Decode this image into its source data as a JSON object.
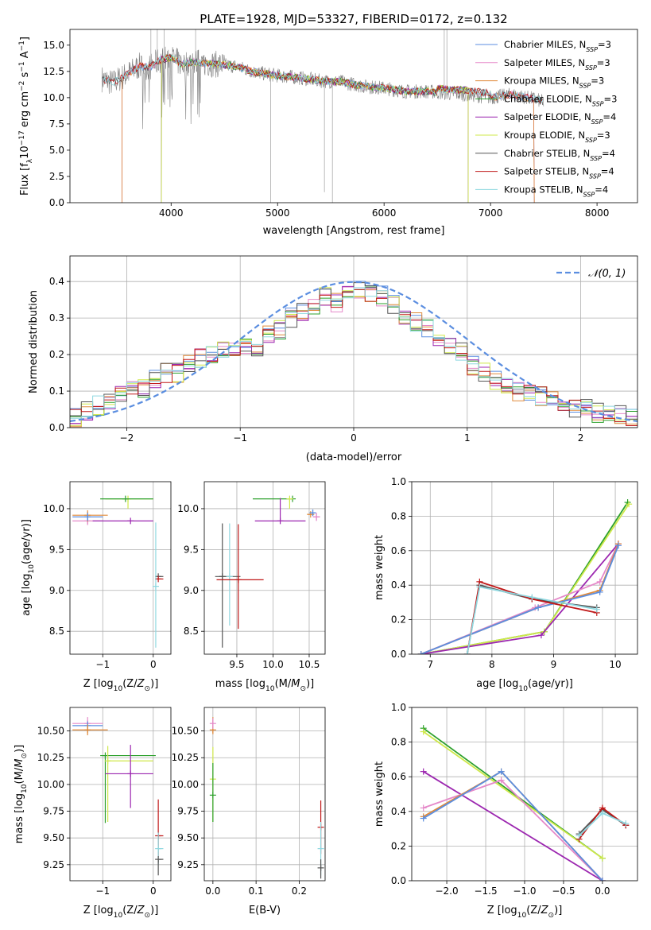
{
  "figure": {
    "title": "PLATE=1928, MJD=53327, FIBERID=0172, z=0.132",
    "colors": {
      "Chabrier MILES": "#5b8ee0",
      "Salpeter MILES": "#e589c9",
      "Kroupa MILES": "#e08a3a",
      "Chabrier ELODIE": "#2ca02c",
      "Salpeter ELODIE": "#9c27b0",
      "Kroupa ELODIE": "#cfe84a",
      "Chabrier STELIB": "#555555",
      "Salpeter STELIB": "#c01818",
      "Kroupa STELIB": "#8fd8e0",
      "data": "#808080",
      "normal": "#5b8ee0"
    }
  },
  "chart_data": [
    {
      "type": "line",
      "title": "PLATE=1928, MJD=53327, FIBERID=0172, z=0.132",
      "xlabel": "wavelength [Angstrom, rest frame]",
      "ylabel": "Flux [f_λ10^-17 erg cm^-2 s^-1 A^-1]",
      "xlim": [
        3050,
        8380
      ],
      "ylim": [
        0,
        16.5
      ],
      "xticks": [
        4000,
        5000,
        6000,
        7000,
        8000
      ],
      "yticks": [
        0.0,
        2.5,
        5.0,
        7.5,
        10.0,
        12.5,
        15.0
      ],
      "legend_position": "right",
      "series": [
        {
          "name": "Chabrier MILES, N_SSP=3"
        },
        {
          "name": "Salpeter MILES, N_SSP=3"
        },
        {
          "name": "Kroupa MILES, N_SSP=3"
        },
        {
          "name": "Chabrier ELODIE, N_SSP=3"
        },
        {
          "name": "Salpeter ELODIE, N_SSP=4"
        },
        {
          "name": "Kroupa ELODIE, N_SSP=3"
        },
        {
          "name": "Chabrier STELIB, N_SSP=4"
        },
        {
          "name": "Salpeter STELIB, N_SSP=4"
        },
        {
          "name": "Kroupa STELIB, N_SSP=4"
        }
      ],
      "data_continuum": {
        "x": [
          3350,
          3450,
          3600,
          3700,
          3800,
          3900,
          4000,
          4100,
          4200,
          4400,
          4600,
          4800,
          5000,
          5200,
          5400,
          5600,
          5800,
          6000,
          6200,
          6400,
          6600,
          6800,
          7000,
          7200,
          7400,
          7500
        ],
        "y": [
          11.8,
          11.4,
          12.3,
          13.0,
          12.9,
          13.6,
          13.8,
          13.2,
          13.4,
          13.2,
          13.0,
          12.4,
          12.1,
          11.9,
          11.6,
          11.5,
          11.1,
          10.9,
          10.6,
          10.6,
          10.4,
          10.3,
          10.0,
          10.3,
          9.9,
          9.6
        ]
      }
    },
    {
      "type": "line",
      "xlabel": "(data-model)/error",
      "ylabel": "Normed distribution",
      "xlim": [
        -2.5,
        2.5
      ],
      "ylim": [
        0,
        0.47
      ],
      "xticks": [
        -2,
        -1,
        0,
        1,
        2
      ],
      "yticks": [
        0.0,
        0.1,
        0.2,
        0.3,
        0.4
      ],
      "bin_edges_start": -2.5,
      "bin_width": 0.1,
      "histogram_mean": [
        0.03,
        0.045,
        0.06,
        0.07,
        0.09,
        0.1,
        0.11,
        0.13,
        0.15,
        0.15,
        0.17,
        0.19,
        0.2,
        0.21,
        0.22,
        0.23,
        0.22,
        0.26,
        0.27,
        0.3,
        0.32,
        0.33,
        0.36,
        0.34,
        0.37,
        0.38,
        0.37,
        0.36,
        0.34,
        0.3,
        0.29,
        0.27,
        0.24,
        0.22,
        0.21,
        0.17,
        0.15,
        0.13,
        0.11,
        0.1,
        0.09,
        0.085,
        0.075,
        0.06,
        0.055,
        0.05,
        0.04,
        0.04,
        0.035,
        0.03
      ],
      "normal_label": "𝒩(0, 1)",
      "legend_position": "top-right"
    },
    {
      "type": "scatter",
      "xlabel": "Z [log10(Z/Z⊙)]",
      "ylabel": "age  [log10(age/yr)]",
      "xlim": [
        -1.65,
        0.35
      ],
      "ylim": [
        8.22,
        10.33
      ],
      "xticks": [
        -1,
        0
      ],
      "yticks": [
        8.5,
        9.0,
        9.5,
        10.0
      ],
      "points": [
        {
          "model": "Salpeter MILES",
          "x": -1.3,
          "y": 9.85,
          "xerr": [
            0.3,
            0.3
          ],
          "yerr": [
            0.05,
            0.05
          ]
        },
        {
          "model": "Kroupa MILES",
          "x": -1.3,
          "y": 9.92,
          "xerr": [
            0.3,
            0.4
          ],
          "yerr": [
            0.08,
            0.06
          ]
        },
        {
          "model": "Chabrier MILES",
          "x": -1.3,
          "y": 9.9,
          "xerr": [
            0.3,
            0.3
          ],
          "yerr": [
            0.05,
            0.05
          ]
        },
        {
          "model": "Salpeter ELODIE",
          "x": -0.45,
          "y": 9.85,
          "xerr": [
            0.75,
            0.45
          ],
          "yerr": [
            0.0,
            0.0
          ]
        },
        {
          "model": "Kroupa ELODIE",
          "x": -0.5,
          "y": 10.12,
          "xerr": [
            0.45,
            0.5
          ],
          "yerr": [
            0.12,
            0.0
          ]
        },
        {
          "model": "Chabrier ELODIE",
          "x": -0.55,
          "y": 10.12,
          "xerr": [
            0.5,
            0.55
          ],
          "yerr": [
            0.0,
            0.0
          ]
        },
        {
          "model": "Chabrier STELIB",
          "x": 0.1,
          "y": 9.17,
          "xerr": [
            0.05,
            0.1
          ],
          "yerr": [
            0.0,
            0.0
          ]
        },
        {
          "model": "Salpeter STELIB",
          "x": 0.1,
          "y": 9.14,
          "xerr": [
            0.05,
            0.1
          ],
          "yerr": [
            0.0,
            0.0
          ]
        },
        {
          "model": "Kroupa STELIB",
          "x": 0.05,
          "y": 9.05,
          "xerr": [
            0.0,
            0.0
          ],
          "yerr": [
            0.75,
            0.78
          ]
        }
      ]
    },
    {
      "type": "scatter",
      "xlabel": "mass [log10(M/M⊙)]",
      "xlim": [
        9.05,
        10.72
      ],
      "ylim": [
        8.22,
        10.33
      ],
      "xticks": [
        9.5,
        10.0,
        10.5
      ],
      "yticks": [
        8.5,
        9.0,
        9.5,
        10.0
      ],
      "points": [
        {
          "model": "Chabrier STELIB",
          "x": 9.3,
          "y": 9.17,
          "xerr": [
            0.1,
            0.25
          ],
          "yerr": [
            0.87,
            0.65
          ]
        },
        {
          "model": "Kroupa STELIB",
          "x": 9.4,
          "y": 9.17,
          "xerr": [
            0.0,
            0.0
          ],
          "yerr": [
            0.6,
            0.65
          ]
        },
        {
          "model": "Salpeter STELIB",
          "x": 9.52,
          "y": 9.13,
          "xerr": [
            0.3,
            0.35
          ],
          "yerr": [
            0.6,
            0.68
          ]
        },
        {
          "model": "Chabrier ELODIE",
          "x": 10.27,
          "y": 10.12,
          "xerr": [
            0.55,
            0.0
          ],
          "yerr": [
            0.0,
            0.0
          ]
        },
        {
          "model": "Kroupa ELODIE",
          "x": 10.23,
          "y": 10.12,
          "xerr": [
            0.0,
            0.05
          ],
          "yerr": [
            0.12,
            0.0
          ]
        },
        {
          "model": "Salpeter ELODIE",
          "x": 10.1,
          "y": 9.85,
          "xerr": [
            0.35,
            0.35
          ],
          "yerr": [
            0.0,
            0.28
          ]
        },
        {
          "model": "Kroupa MILES",
          "x": 10.52,
          "y": 9.93,
          "xerr": [
            0.05,
            0.05
          ],
          "yerr": [
            0.0,
            0.0
          ]
        },
        {
          "model": "Salpeter MILES",
          "x": 10.6,
          "y": 9.9,
          "xerr": [
            0.05,
            0.05
          ],
          "yerr": [
            0.05,
            0.05
          ]
        },
        {
          "model": "Chabrier MILES",
          "x": 10.55,
          "y": 9.95,
          "xerr": [
            0.04,
            0.04
          ],
          "yerr": [
            0.04,
            0.04
          ]
        }
      ]
    },
    {
      "type": "line",
      "xlabel": "age  [log10(age/yr)]",
      "ylabel": "mass weight",
      "xlim": [
        6.7,
        10.36
      ],
      "ylim": [
        0,
        1.0
      ],
      "xticks": [
        7,
        8,
        9,
        10
      ],
      "yticks": [
        0.0,
        0.2,
        0.4,
        0.6,
        0.8,
        1.0
      ],
      "series": [
        {
          "model": "Chabrier ELODIE",
          "x": [
            6.85,
            8.85,
            10.2
          ],
          "y": [
            0.0,
            0.13,
            0.88
          ]
        },
        {
          "model": "Kroupa ELODIE",
          "x": [
            6.85,
            8.85,
            10.22
          ],
          "y": [
            0.0,
            0.13,
            0.87
          ]
        },
        {
          "model": "Salpeter ELODIE",
          "x": [
            6.85,
            8.8,
            10.05
          ],
          "y": [
            0.0,
            0.11,
            0.64
          ]
        },
        {
          "model": "Salpeter MILES",
          "x": [
            6.85,
            8.7,
            9.75,
            10.05
          ],
          "y": [
            0.0,
            0.27,
            0.42,
            0.64
          ]
        },
        {
          "model": "Kroupa MILES",
          "x": [
            6.85,
            8.75,
            9.75,
            10.05
          ],
          "y": [
            0.0,
            0.27,
            0.37,
            0.64
          ]
        },
        {
          "model": "Chabrier MILES",
          "x": [
            6.85,
            8.75,
            9.75,
            10.05
          ],
          "y": [
            0.0,
            0.27,
            0.36,
            0.63
          ]
        },
        {
          "model": "Chabrier STELIB",
          "x": [
            7.6,
            7.8,
            8.65,
            9.7
          ],
          "y": [
            0.0,
            0.4,
            0.32,
            0.27
          ]
        },
        {
          "model": "Salpeter STELIB",
          "x": [
            7.6,
            7.8,
            8.65,
            9.7
          ],
          "y": [
            0.0,
            0.42,
            0.32,
            0.24
          ]
        },
        {
          "model": "Kroupa STELIB",
          "x": [
            7.6,
            7.8,
            8.65,
            9.7
          ],
          "y": [
            0.0,
            0.39,
            0.33,
            0.26
          ]
        }
      ]
    },
    {
      "type": "scatter",
      "xlabel": "Z [log10(Z/Z⊙)]",
      "ylabel": "mass [log10(M/M⊙)]",
      "xlim": [
        -1.65,
        0.35
      ],
      "ylim": [
        9.1,
        10.72
      ],
      "xticks": [
        -1,
        0
      ],
      "yticks": [
        9.25,
        9.5,
        9.75,
        10.0,
        10.25,
        10.5
      ],
      "points": [
        {
          "model": "Salpeter MILES",
          "x": -1.3,
          "y": 10.57,
          "xerr": [
            0.3,
            0.3
          ],
          "yerr": [
            0.06,
            0.06
          ]
        },
        {
          "model": "Chabrier MILES",
          "x": -1.3,
          "y": 10.55,
          "xerr": [
            0.3,
            0.3
          ],
          "yerr": [
            0.04,
            0.04
          ]
        },
        {
          "model": "Kroupa MILES",
          "x": -1.3,
          "y": 10.51,
          "xerr": [
            0.3,
            0.4
          ],
          "yerr": [
            0.05,
            0.05
          ]
        },
        {
          "model": "Chabrier ELODIE",
          "x": -0.95,
          "y": 10.27,
          "xerr": [
            0.1,
            1.0
          ],
          "yerr": [
            0.63,
            0.0
          ]
        },
        {
          "model": "Kroupa ELODIE",
          "x": -0.9,
          "y": 10.22,
          "xerr": [
            0.0,
            0.9
          ],
          "yerr": [
            0.57,
            0.14
          ]
        },
        {
          "model": "Salpeter ELODIE",
          "x": -0.45,
          "y": 10.1,
          "xerr": [
            0.5,
            0.45
          ],
          "yerr": [
            0.32,
            0.27
          ]
        },
        {
          "model": "Salpeter STELIB",
          "x": 0.1,
          "y": 9.52,
          "xerr": [
            0.0,
            0.1
          ],
          "yerr": [
            0.2,
            0.34
          ]
        },
        {
          "model": "Kroupa STELIB",
          "x": 0.1,
          "y": 9.4,
          "xerr": [
            0.0,
            0.1
          ],
          "yerr": [
            0.15,
            0.15
          ]
        },
        {
          "model": "Chabrier STELIB",
          "x": 0.1,
          "y": 9.3,
          "xerr": [
            0.0,
            0.1
          ],
          "yerr": [
            0.15,
            0.0
          ]
        }
      ]
    },
    {
      "type": "scatter",
      "xlabel": "E(B-V)",
      "xlim": [
        -0.02,
        0.26
      ],
      "ylim": [
        9.1,
        10.72
      ],
      "xticks": [
        0.0,
        0.1,
        0.2
      ],
      "yticks": [
        9.25,
        9.5,
        9.75,
        10.0,
        10.25,
        10.5
      ],
      "points": [
        {
          "model": "Kroupa MILES",
          "x": 0.0,
          "y": 10.51,
          "yerr": [
            0.04,
            0.12
          ]
        },
        {
          "model": "Salpeter MILES",
          "x": 0.0,
          "y": 10.57,
          "yerr": [
            0.05,
            0.05
          ]
        },
        {
          "model": "Kroupa ELODIE",
          "x": 0.0,
          "y": 10.05,
          "yerr": [
            0.4,
            0.3
          ]
        },
        {
          "model": "Chabrier ELODIE",
          "x": 0.0,
          "y": 9.9,
          "yerr": [
            0.25,
            0.3
          ]
        },
        {
          "model": "Salpeter STELIB",
          "x": 0.25,
          "y": 9.6,
          "yerr": [
            0.25,
            0.25
          ]
        },
        {
          "model": "Kroupa STELIB",
          "x": 0.25,
          "y": 9.4,
          "yerr": [
            0.25,
            0.25
          ]
        },
        {
          "model": "Chabrier STELIB",
          "x": 0.25,
          "y": 9.22,
          "yerr": [
            0.1,
            0.08
          ]
        }
      ]
    },
    {
      "type": "line",
      "xlabel": "Z [log10(Z/Z⊙)]",
      "ylabel": "mass weight",
      "xlim": [
        -2.45,
        0.45
      ],
      "ylim": [
        0,
        1.0
      ],
      "xticks": [
        -2.0,
        -1.5,
        -1.0,
        -0.5,
        0.0
      ],
      "yticks": [
        0.0,
        0.2,
        0.4,
        0.6,
        0.8,
        1.0
      ],
      "series": [
        {
          "model": "Chabrier ELODIE",
          "x": [
            -2.3,
            0.0
          ],
          "y": [
            0.88,
            0.13
          ]
        },
        {
          "model": "Kroupa ELODIE",
          "x": [
            -2.3,
            0.0
          ],
          "y": [
            0.86,
            0.13
          ]
        },
        {
          "model": "Salpeter ELODIE",
          "x": [
            -2.3,
            0.0
          ],
          "y": [
            0.63,
            0.0
          ]
        },
        {
          "model": "Salpeter MILES",
          "x": [
            -2.3,
            -1.3,
            0.0
          ],
          "y": [
            0.42,
            0.58,
            0.0
          ]
        },
        {
          "model": "Kroupa MILES",
          "x": [
            -2.3,
            -1.3,
            0.0
          ],
          "y": [
            0.37,
            0.63,
            0.0
          ]
        },
        {
          "model": "Chabrier MILES",
          "x": [
            -2.3,
            -1.3,
            0.0
          ],
          "y": [
            0.36,
            0.63,
            0.0
          ]
        },
        {
          "model": "Chabrier STELIB",
          "x": [
            -0.3,
            0.0,
            0.3
          ],
          "y": [
            0.27,
            0.41,
            0.32
          ]
        },
        {
          "model": "Salpeter STELIB",
          "x": [
            -0.3,
            0.0,
            0.3
          ],
          "y": [
            0.24,
            0.42,
            0.32
          ]
        },
        {
          "model": "Kroupa STELIB",
          "x": [
            -0.3,
            0.0,
            0.3
          ],
          "y": [
            0.26,
            0.39,
            0.33
          ]
        }
      ]
    }
  ]
}
